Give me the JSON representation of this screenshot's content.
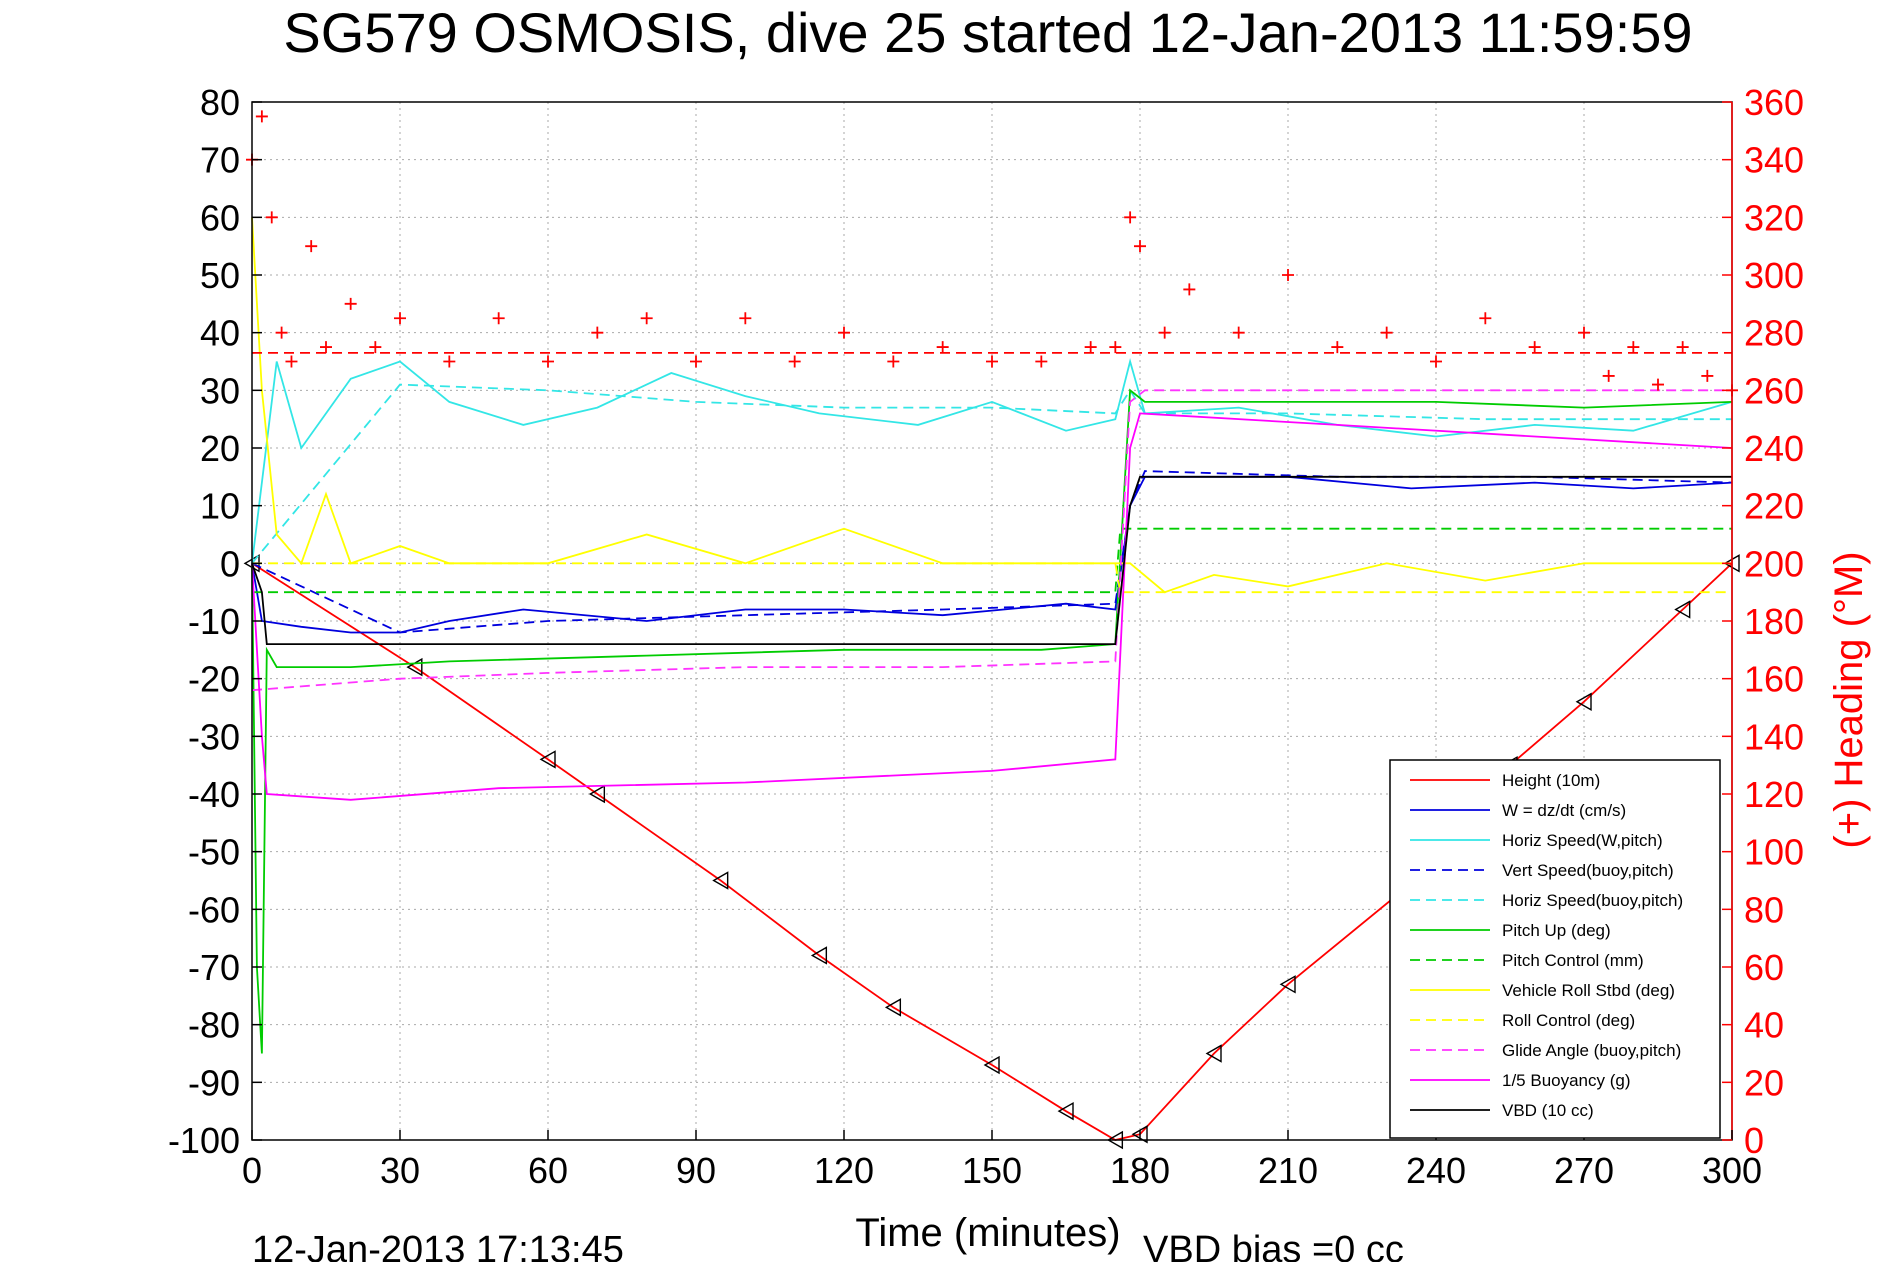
{
  "chart_data": {
    "type": "line",
    "title": "SG579 OSMOSIS, dive 25 started 12-Jan-2013 11:59:59",
    "xlabel": "Time (minutes)",
    "ylabel": "",
    "y2label": "(+) Heading (°M)",
    "xlim": [
      0,
      300
    ],
    "ylim": [
      -100,
      80
    ],
    "y2lim": [
      0,
      360
    ],
    "xticks": [
      0,
      30,
      60,
      90,
      120,
      150,
      180,
      210,
      240,
      270,
      300
    ],
    "xtick_labels": [
      "0",
      "30",
      "60",
      "90",
      "120",
      "150",
      "180",
      "210",
      "240",
      "270",
      "300"
    ],
    "yticks": [
      -100,
      -90,
      -80,
      -70,
      -60,
      -50,
      -40,
      -30,
      -20,
      -10,
      0,
      10,
      20,
      30,
      40,
      50,
      60,
      70,
      80
    ],
    "ytick_labels": [
      "-100",
      "-90",
      "-80",
      "-70",
      "-60",
      "-50",
      "-40",
      "-30",
      "-20",
      "-10",
      "0",
      "10",
      "20",
      "30",
      "40",
      "50",
      "60",
      "70",
      "80"
    ],
    "y2ticks": [
      0,
      20,
      40,
      60,
      80,
      100,
      120,
      140,
      160,
      180,
      200,
      220,
      240,
      260,
      280,
      300,
      320,
      340,
      360
    ],
    "y2tick_labels": [
      "0",
      "20",
      "40",
      "60",
      "80",
      "100",
      "120",
      "140",
      "160",
      "180",
      "200",
      "220",
      "240",
      "260",
      "280",
      "300",
      "320",
      "340",
      "360"
    ],
    "grid": true,
    "legend_position": "bottom-right",
    "footer_left": "12-Jan-2013 17:13:45",
    "footer_right": "VBD bias =0 cc",
    "colors": {
      "height": "#ff0000",
      "w": "#0000dd",
      "horiz_speed": "#33e6e6",
      "pitch": "#00cc00",
      "roll": "#ffff00",
      "glide": "#ff33ff",
      "buoyancy": "#ff00ff",
      "vbd": "#000000",
      "heading": "#ff0000",
      "right_axis": "#ff0000"
    },
    "series": [
      {
        "name": "Height (10m)",
        "color": "#ff0000",
        "style": "solid",
        "marker": "triangle",
        "x": [
          0,
          33,
          60,
          70,
          95,
          115,
          130,
          150,
          165,
          175,
          180,
          195,
          210,
          240,
          255,
          270,
          290,
          300
        ],
        "y": [
          0,
          -18,
          -34,
          -40,
          -55,
          -68,
          -77,
          -87,
          -95,
          -100,
          -99,
          -85,
          -73,
          -52,
          -35,
          -24,
          -8,
          0
        ]
      },
      {
        "name": "W = dz/dt (cm/s)",
        "color": "#0000dd",
        "style": "solid",
        "x": [
          0,
          2,
          10,
          20,
          30,
          40,
          55,
          80,
          100,
          120,
          140,
          165,
          175,
          178,
          181,
          200,
          210,
          235,
          260,
          280,
          300
        ],
        "y": [
          0,
          -10,
          -11,
          -12,
          -12,
          -10,
          -8,
          -10,
          -8,
          -8,
          -9,
          -7,
          -8,
          10,
          15,
          15,
          15,
          13,
          14,
          13,
          14
        ]
      },
      {
        "name": "Horiz Speed(W,pitch)",
        "color": "#33e6e6",
        "style": "solid",
        "x": [
          0,
          5,
          10,
          20,
          30,
          40,
          55,
          70,
          85,
          100,
          115,
          135,
          150,
          165,
          175,
          178,
          181,
          200,
          220,
          240,
          260,
          280,
          300
        ],
        "y": [
          0,
          35,
          20,
          32,
          35,
          28,
          24,
          27,
          33,
          29,
          26,
          24,
          28,
          23,
          25,
          35,
          26,
          27,
          24,
          22,
          24,
          23,
          28
        ]
      },
      {
        "name": "Vert Speed(buoy,pitch)",
        "color": "#0000dd",
        "style": "dashed",
        "x": [
          0,
          30,
          60,
          100,
          140,
          175,
          178,
          181,
          220,
          260,
          300
        ],
        "y": [
          0,
          -12,
          -10,
          -9,
          -8,
          -7,
          10,
          16,
          15,
          15,
          14
        ]
      },
      {
        "name": "Horiz Speed(buoy,pitch)",
        "color": "#33e6e6",
        "style": "dashed",
        "x": [
          0,
          30,
          60,
          90,
          120,
          150,
          175,
          178,
          181,
          210,
          250,
          300
        ],
        "y": [
          0,
          31,
          30,
          28,
          27,
          27,
          26,
          30,
          26,
          26,
          25,
          25
        ]
      },
      {
        "name": "Pitch Up (deg)",
        "color": "#00cc00",
        "style": "solid",
        "x": [
          0,
          1,
          2,
          3,
          5,
          20,
          40,
          80,
          120,
          160,
          175,
          178,
          181,
          210,
          240,
          270,
          300
        ],
        "y": [
          0,
          -70,
          -85,
          -15,
          -18,
          -18,
          -17,
          -16,
          -15,
          -15,
          -14,
          30,
          28,
          28,
          28,
          27,
          28
        ]
      },
      {
        "name": "Pitch Control (mm)",
        "color": "#00cc00",
        "style": "dashed",
        "x": [
          0,
          175,
          176,
          300
        ],
        "y": [
          -5,
          -5,
          6,
          6
        ]
      },
      {
        "name": "Vehicle Roll Stbd (deg)",
        "color": "#ffff00",
        "style": "solid",
        "x": [
          0,
          2,
          5,
          10,
          15,
          20,
          30,
          40,
          60,
          80,
          100,
          120,
          140,
          160,
          175,
          178,
          185,
          195,
          210,
          230,
          250,
          270,
          290,
          300
        ],
        "y": [
          60,
          30,
          5,
          0,
          12,
          0,
          3,
          0,
          0,
          5,
          0,
          6,
          0,
          0,
          0,
          0,
          -5,
          -2,
          -4,
          0,
          -3,
          0,
          0,
          0
        ]
      },
      {
        "name": "Roll Control (deg)",
        "color": "#ffff00",
        "style": "dashed",
        "x": [
          0,
          60,
          61,
          120,
          121,
          175,
          176,
          300
        ],
        "y": [
          0,
          0,
          0,
          0,
          0,
          0,
          -5,
          -5
        ]
      },
      {
        "name": "Glide Angle (buoy,pitch)",
        "color": "#ff33ff",
        "style": "dashed",
        "x": [
          0,
          30,
          60,
          100,
          140,
          175,
          178,
          181,
          220,
          260,
          300
        ],
        "y": [
          -22,
          -20,
          -19,
          -18,
          -18,
          -17,
          28,
          30,
          30,
          30,
          30
        ]
      },
      {
        "name": "1/5 Buoyancy (g)",
        "color": "#ff00ff",
        "style": "solid",
        "x": [
          0,
          2,
          3,
          20,
          50,
          100,
          150,
          175,
          178,
          180,
          220,
          260,
          300
        ],
        "y": [
          0,
          -30,
          -40,
          -41,
          -39,
          -38,
          -36,
          -34,
          20,
          26,
          24,
          22,
          20
        ]
      },
      {
        "name": "VBD (10 cc)",
        "color": "#000000",
        "style": "solid",
        "x": [
          0,
          2,
          3,
          175,
          178,
          180,
          300
        ],
        "y": [
          0,
          -5,
          -14,
          -14,
          10,
          15,
          15
        ]
      },
      {
        "name": "Heading",
        "color": "#ff0000",
        "style": "markers",
        "marker": "plus",
        "axis": "right",
        "x": [
          0,
          2,
          4,
          6,
          8,
          12,
          15,
          20,
          25,
          30,
          40,
          50,
          60,
          70,
          80,
          90,
          100,
          110,
          120,
          130,
          140,
          150,
          160,
          170,
          175,
          178,
          180,
          185,
          190,
          200,
          210,
          220,
          230,
          240,
          250,
          260,
          270,
          275,
          280,
          285,
          290,
          295,
          300
        ],
        "y": [
          340,
          355,
          320,
          280,
          270,
          310,
          275,
          290,
          275,
          285,
          270,
          285,
          270,
          280,
          285,
          270,
          285,
          270,
          280,
          270,
          275,
          270,
          270,
          275,
          275,
          320,
          310,
          280,
          295,
          280,
          300,
          275,
          280,
          270,
          285,
          275,
          280,
          265,
          275,
          262,
          275,
          265,
          260
        ]
      },
      {
        "name": "Heading target",
        "color": "#ff0000",
        "style": "dashed",
        "axis": "right",
        "x": [
          0,
          300
        ],
        "y": [
          273,
          273
        ]
      }
    ]
  }
}
